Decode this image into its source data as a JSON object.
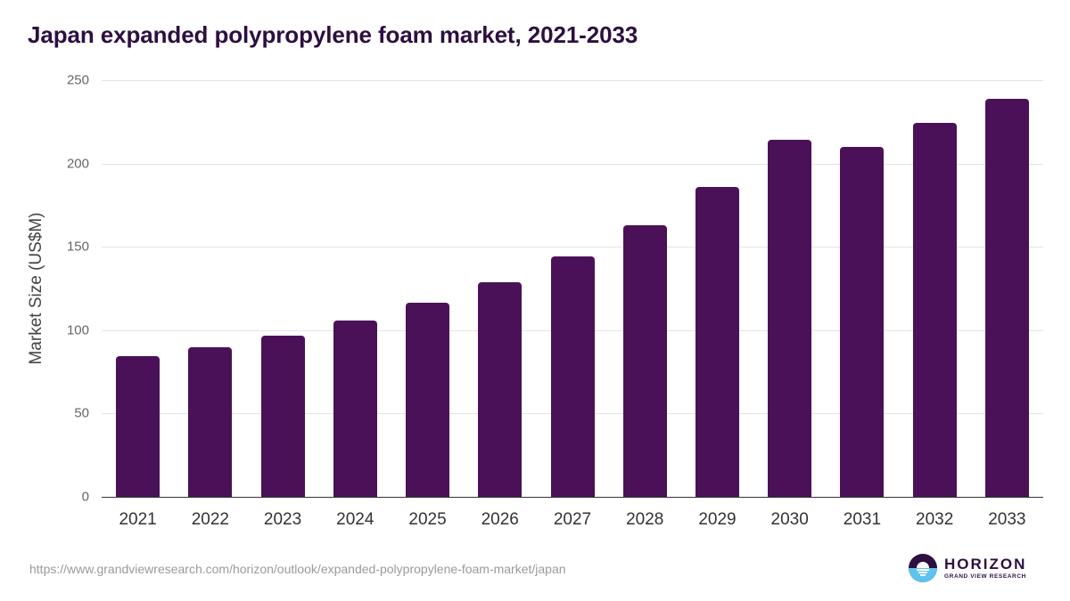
{
  "header": {
    "title": "Japan expanded polypropylene foam market, 2021-2033"
  },
  "chart_data": {
    "type": "bar",
    "title": "Japan expanded polypropylene foam market, 2021-2033",
    "xlabel": "",
    "ylabel": "Market Size (US$M)",
    "ylim": [
      0,
      250
    ],
    "yticks": [
      0,
      50,
      100,
      150,
      200,
      250
    ],
    "grid": true,
    "legend": null,
    "categories": [
      "2021",
      "2022",
      "2023",
      "2024",
      "2025",
      "2026",
      "2027",
      "2028",
      "2029",
      "2030",
      "2031",
      "2032",
      "2033"
    ],
    "values": [
      84.4,
      89.7,
      96.7,
      105.8,
      116.5,
      128.7,
      144.1,
      162.8,
      185.9,
      214.0,
      209.7,
      224.2,
      238.8
    ],
    "bar_color": "#4b1158"
  },
  "footer": {
    "source_url": "https://www.grandviewresearch.com/horizon/outlook/expanded-polypropylene-foam-market/japan",
    "logo_name": "HORIZON",
    "logo_subtitle": "GRAND VIEW RESEARCH"
  }
}
